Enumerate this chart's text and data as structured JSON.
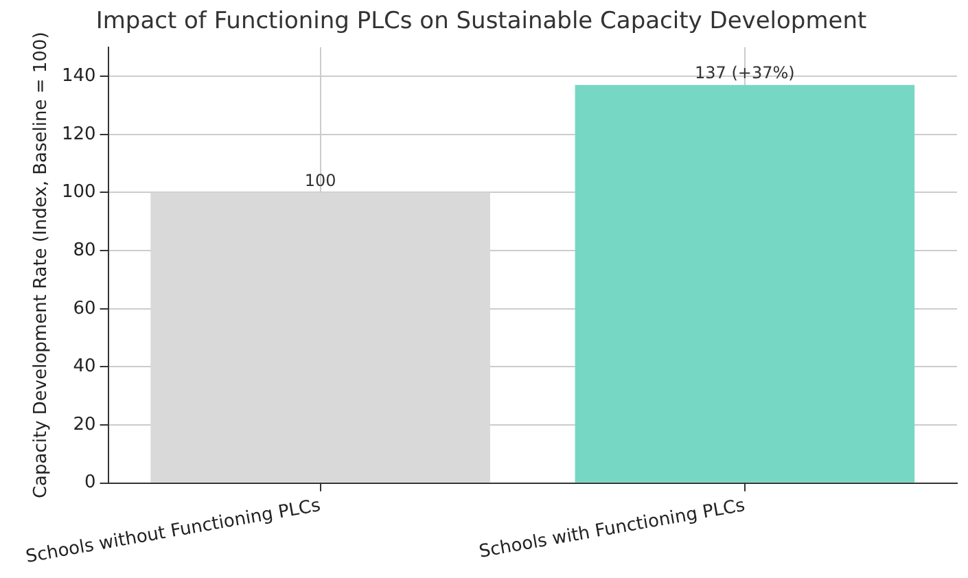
{
  "chart_data": {
    "type": "bar",
    "title": "Impact of Functioning PLCs on Sustainable Capacity Development",
    "ylabel": "Capacity Development Rate (Index, Baseline = 100)",
    "categories": [
      "Schools without Functioning PLCs",
      "Schools with Functioning PLCs"
    ],
    "values": [
      100,
      137
    ],
    "colors": [
      "#d9d9d9",
      "#76d7c4"
    ],
    "value_labels": [
      "100",
      "137 (+37%)"
    ],
    "ylim": [
      0,
      150
    ],
    "yticks": [
      0,
      20,
      40,
      60,
      80,
      100,
      120,
      140
    ],
    "grid": true,
    "legend": false
  }
}
